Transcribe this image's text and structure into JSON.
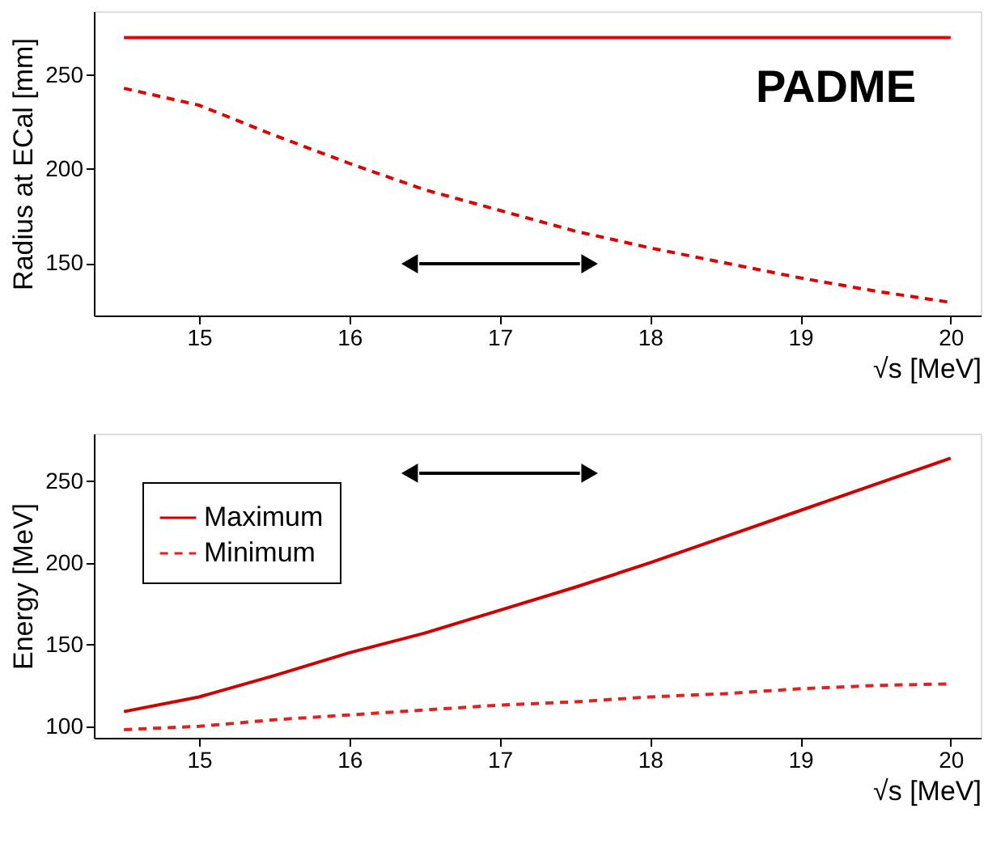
{
  "chart_data": [
    {
      "type": "line",
      "ylabel": "Radius at ECal [mm]",
      "xlabel": "√s [MeV]",
      "annotations": [
        "PADME"
      ],
      "x": [
        14.5,
        15,
        15.5,
        16,
        16.5,
        17,
        17.5,
        18,
        18.5,
        19,
        19.5,
        20
      ],
      "series": [
        {
          "color": "#ee0000",
          "line_style": "solid",
          "values": [
            270,
            270,
            270,
            270,
            270,
            270,
            270,
            270,
            270,
            270,
            270,
            270
          ]
        },
        {
          "color": "#dd0000",
          "line_style": "dashed",
          "values": [
            243,
            234,
            218,
            203,
            189,
            178,
            167,
            158,
            150,
            142,
            135,
            129
          ]
        }
      ],
      "xlim": [
        14.3,
        20.2
      ],
      "xticks": [
        15,
        16,
        17,
        18,
        19,
        20
      ],
      "ylim": [
        122,
        284
      ],
      "yticks": [
        150,
        200,
        250
      ],
      "grid": false,
      "marker": "none",
      "legend": false
    },
    {
      "type": "line",
      "ylabel": "Energy [MeV]",
      "xlabel": "√s [MeV]",
      "x": [
        14.5,
        15,
        15.5,
        16,
        16.5,
        17,
        17.5,
        18,
        18.5,
        19,
        19.5,
        20
      ],
      "series": [
        {
          "name": "Maximum",
          "color": "#cc0000",
          "line_style": "solid",
          "values": [
            109,
            118,
            131,
            145,
            157,
            171,
            185,
            200,
            216,
            232,
            248,
            264
          ]
        },
        {
          "name": "Minimum",
          "color": "#dd2222",
          "line_style": "dashed",
          "values": [
            98,
            100,
            104,
            107,
            110,
            113,
            115,
            118,
            120,
            123,
            125,
            126
          ]
        }
      ],
      "xlim": [
        14.3,
        20.2
      ],
      "xticks": [
        15,
        16,
        17,
        18,
        19,
        20
      ],
      "ylim": [
        93,
        279
      ],
      "yticks": [
        100,
        150,
        200,
        250
      ],
      "grid": false,
      "marker": "none",
      "legend": "top left"
    }
  ]
}
